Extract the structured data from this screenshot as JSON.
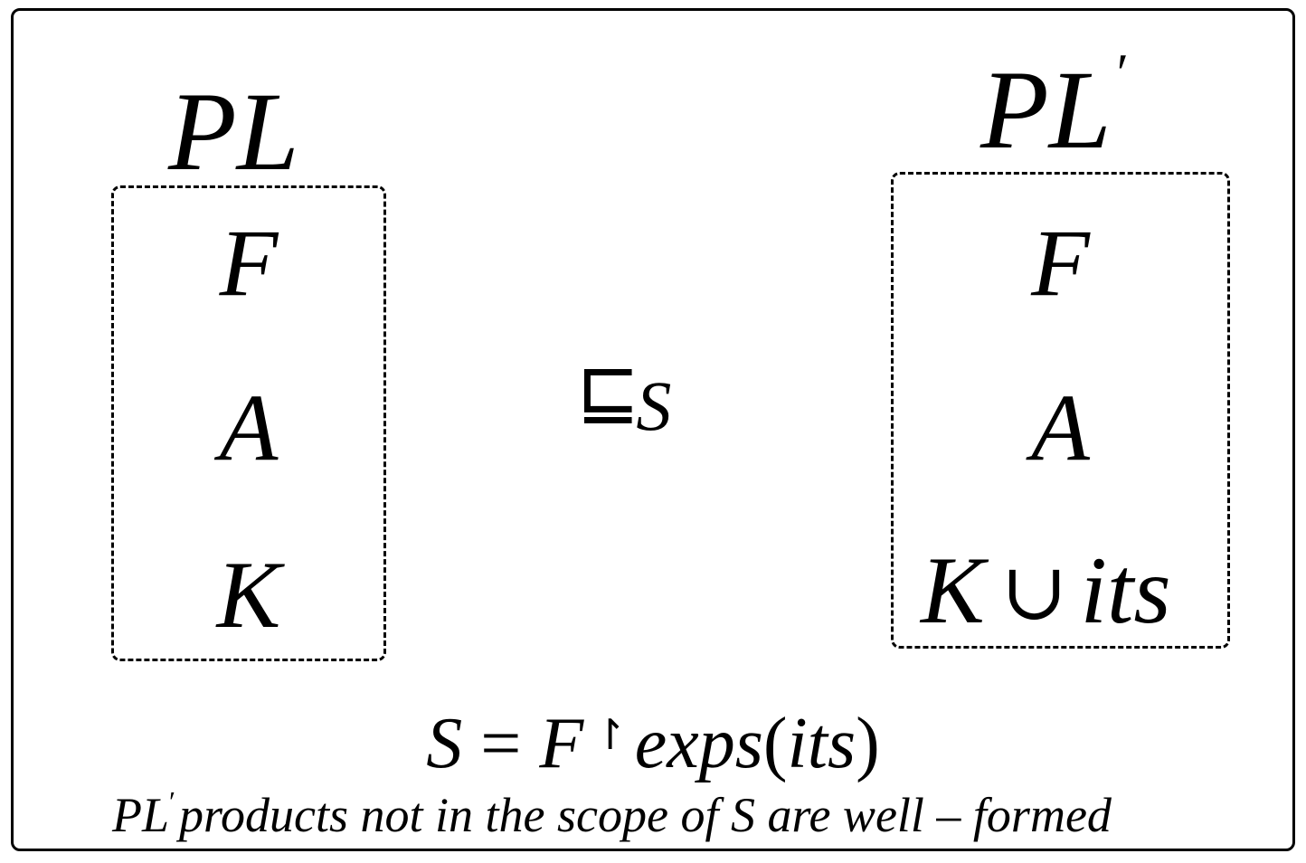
{
  "left_product_line": {
    "title": "PL",
    "features": "F",
    "assets": "A",
    "mapping": "K"
  },
  "right_product_line": {
    "title": "PL",
    "prime": "′",
    "features": "F",
    "assets": "A",
    "mapping_base": "K",
    "union": "∪",
    "mapping_extra": "its"
  },
  "relation": {
    "operator": "⊑",
    "subscript": "S"
  },
  "formula": {
    "lhs": "S",
    "equals": "=",
    "base": "F",
    "restrict": "↾",
    "func": "exps",
    "open": "(",
    "arg": "its",
    "close": ")"
  },
  "footnote": {
    "subject": "PL",
    "prime": "′",
    "text": "products not in the scope of S are well – formed"
  }
}
